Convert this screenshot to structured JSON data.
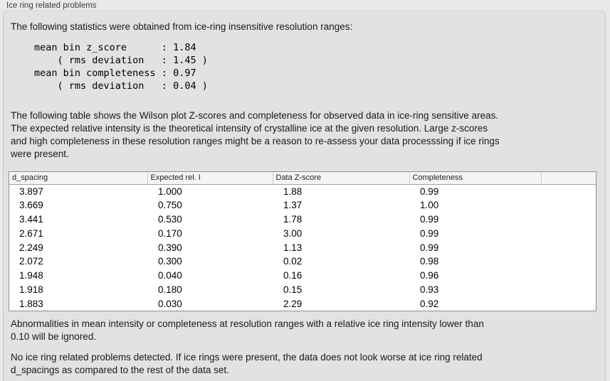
{
  "panel": {
    "title": "Ice ring related problems"
  },
  "intro": "The following statistics were obtained from ice-ring insensitive resolution ranges:",
  "stats_block": "mean bin z_score      : 1.84\n    ( rms deviation   : 1.45 )\nmean bin completeness : 0.97\n    ( rms deviation   : 0.04 )",
  "stats": {
    "mean_bin_z_score": "1.84",
    "z_score_rms_deviation": "1.45",
    "mean_bin_completeness": "0.97",
    "completeness_rms_deviation": "0.04"
  },
  "description": "The following table shows the Wilson plot Z-scores and completeness for observed data in ice-ring sensitive areas.\nThe expected relative intensity is the theoretical intensity of crystalline ice at the given resolution. Large z-scores\nand high completeness in these resolution ranges might be a reason to re-assess your data processsing if ice rings\nwere present.",
  "table": {
    "columns": [
      "d_spacing",
      "Expected rel. I",
      "Data Z-score",
      "Completeness",
      ""
    ],
    "rows": [
      [
        "3.897",
        "1.000",
        "1.88",
        "0.99",
        ""
      ],
      [
        "3.669",
        "0.750",
        "1.37",
        "1.00",
        ""
      ],
      [
        "3.441",
        "0.530",
        "1.78",
        "0.99",
        ""
      ],
      [
        "2.671",
        "0.170",
        "3.00",
        "0.99",
        ""
      ],
      [
        "2.249",
        "0.390",
        "1.13",
        "0.99",
        ""
      ],
      [
        "2.072",
        "0.300",
        "0.02",
        "0.98",
        ""
      ],
      [
        "1.948",
        "0.040",
        "0.16",
        "0.96",
        ""
      ],
      [
        "1.918",
        "0.180",
        "0.15",
        "0.93",
        ""
      ],
      [
        "1.883",
        "0.030",
        "2.29",
        "0.92",
        ""
      ]
    ]
  },
  "threshold_note": "Abnormalities in mean intensity or completeness at resolution ranges with a relative ice ring intensity lower than\n0.10 will be ignored.",
  "conclusion": "No ice ring related problems detected. If ice rings were present, the data does not look worse at ice ring related\nd_spacings as compared to the rest of the data set."
}
